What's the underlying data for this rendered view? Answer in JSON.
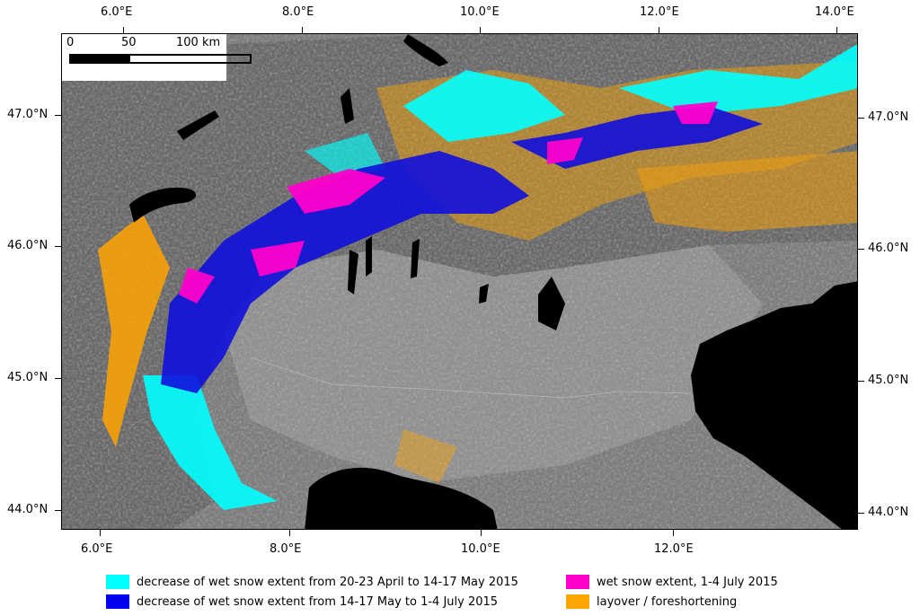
{
  "map": {
    "lon_ticks": [
      "6.0°E",
      "8.0°E",
      "10.0°E",
      "12.0°E",
      "14.0°E"
    ],
    "lat_ticks": [
      "47.0°N",
      "46.0°N",
      "45.0°N",
      "44.0°N"
    ],
    "lon_range": [
      5.6,
      14.0
    ],
    "lat_range": [
      43.85,
      47.6
    ]
  },
  "scalebar": {
    "labels": [
      "0",
      "50",
      "100 km"
    ]
  },
  "legend": [
    {
      "label": "decrease of wet snow extent from 20-23 April to 14-17 May 2015",
      "color": "#00ffff"
    },
    {
      "label": "decrease of wet snow extent from 14-17 May to 1-4 July 2015",
      "color": "#0000ee"
    },
    {
      "label": "wet snow extent, 1-4 July 2015",
      "color": "#ff00cc"
    },
    {
      "label": "layover / foreshortening",
      "color": "#ffa500"
    }
  ]
}
